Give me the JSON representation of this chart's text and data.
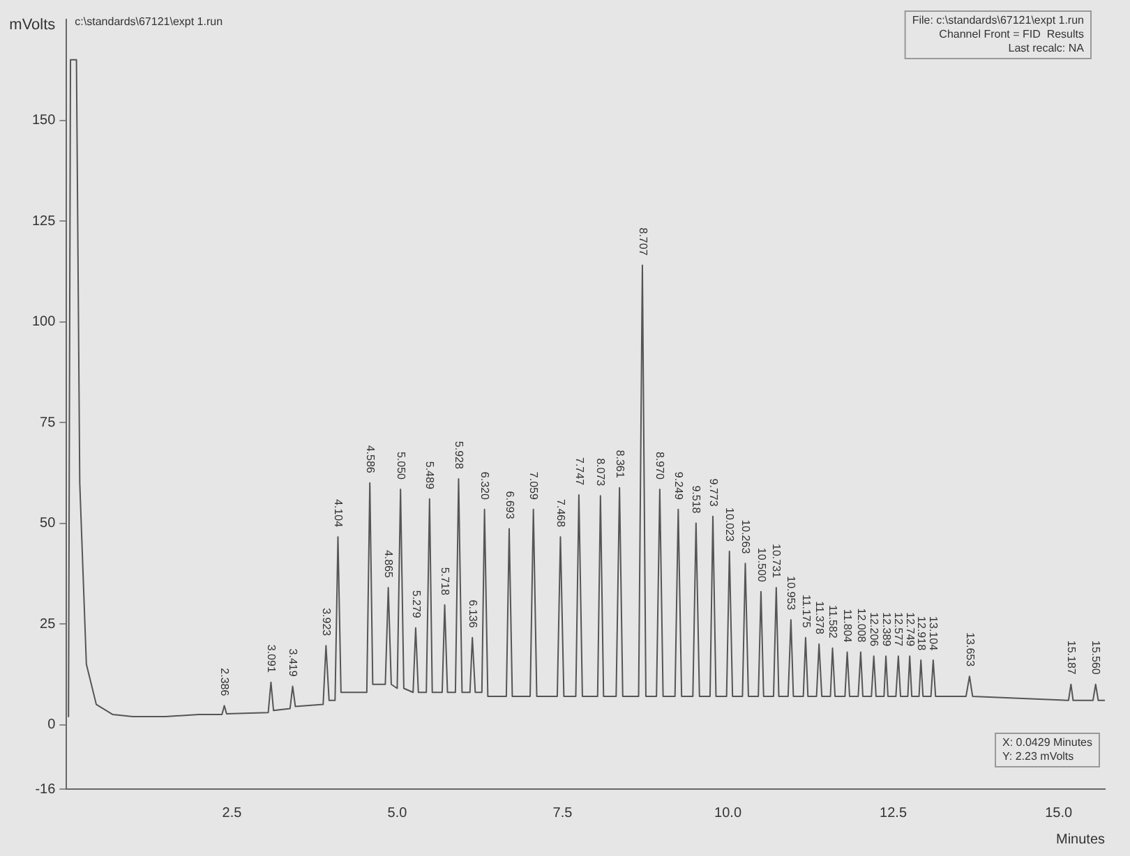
{
  "chart_data": {
    "type": "line",
    "xlabel": "Minutes",
    "ylabel": "mVolts",
    "annotations": [
      "c:\\standards\\67121\\expt 1.run",
      "File: c:\\standards\\67121\\expt 1.run",
      "Channel Front = FID  Results",
      "Last recalc: NA",
      "X: 0.0429 Minutes",
      "Y: 2.23 mVolts",
      {
        "text": "2.386",
        "x": 2.386,
        "y": 4.7
      },
      {
        "text": "3.091",
        "x": 3.091,
        "y": 10.5
      },
      {
        "text": "3.419",
        "x": 3.419,
        "y": 9.5
      },
      {
        "text": "3.923",
        "x": 3.923,
        "y": 19.6
      },
      {
        "text": "4.104",
        "x": 4.104,
        "y": 46.6
      },
      {
        "text": "4.586",
        "x": 4.586,
        "y": 60
      },
      {
        "text": "4.865",
        "x": 4.865,
        "y": 34
      },
      {
        "text": "5.050",
        "x": 5.05,
        "y": 58.4
      },
      {
        "text": "5.279",
        "x": 5.279,
        "y": 24
      },
      {
        "text": "5.489",
        "x": 5.489,
        "y": 56
      },
      {
        "text": "5.718",
        "x": 5.718,
        "y": 29.7
      },
      {
        "text": "5.928",
        "x": 5.928,
        "y": 61
      },
      {
        "text": "6.136",
        "x": 6.136,
        "y": 21.6
      },
      {
        "text": "6.320",
        "x": 6.32,
        "y": 53.4
      },
      {
        "text": "6.693",
        "x": 6.693,
        "y": 48.6
      },
      {
        "text": "7.059",
        "x": 7.059,
        "y": 53.4
      },
      {
        "text": "7.468",
        "x": 7.468,
        "y": 46.6
      },
      {
        "text": "7.747",
        "x": 7.747,
        "y": 57
      },
      {
        "text": "8.073",
        "x": 8.073,
        "y": 56.8
      },
      {
        "text": "8.361",
        "x": 8.361,
        "y": 58.8
      },
      {
        "text": "8.707",
        "x": 8.707,
        "y": 114
      },
      {
        "text": "8.970",
        "x": 8.97,
        "y": 58.4
      },
      {
        "text": "9.249",
        "x": 9.249,
        "y": 53.4
      },
      {
        "text": "9.518",
        "x": 9.518,
        "y": 50
      },
      {
        "text": "9.773",
        "x": 9.773,
        "y": 51.7
      },
      {
        "text": "10.023",
        "x": 10.023,
        "y": 43
      },
      {
        "text": "10.263",
        "x": 10.263,
        "y": 40
      },
      {
        "text": "10.500",
        "x": 10.5,
        "y": 33
      },
      {
        "text": "10.731",
        "x": 10.731,
        "y": 34
      },
      {
        "text": "10.953",
        "x": 10.953,
        "y": 26
      },
      {
        "text": "11.175",
        "x": 11.175,
        "y": 21.6
      },
      {
        "text": "11.378",
        "x": 11.378,
        "y": 20
      },
      {
        "text": "11.582",
        "x": 11.582,
        "y": 19
      },
      {
        "text": "11.804",
        "x": 11.804,
        "y": 18
      },
      {
        "text": "12.008",
        "x": 12.008,
        "y": 18
      },
      {
        "text": "12.206",
        "x": 12.206,
        "y": 17
      },
      {
        "text": "12.389",
        "x": 12.389,
        "y": 17
      },
      {
        "text": "12.577",
        "x": 12.577,
        "y": 17
      },
      {
        "text": "12.749",
        "x": 12.749,
        "y": 17
      },
      {
        "text": "12.918",
        "x": 12.918,
        "y": 16
      },
      {
        "text": "13.104",
        "x": 13.104,
        "y": 16
      },
      {
        "text": "13.653",
        "x": 13.653,
        "y": 12
      },
      {
        "text": "15.187",
        "x": 15.187,
        "y": 10
      },
      {
        "text": "15.560",
        "x": 15.56,
        "y": 10
      }
    ],
    "x": [
      0.03,
      0.06,
      0.15,
      0.2,
      0.3,
      0.45,
      0.7,
      1,
      1.5,
      2,
      2.35,
      2.386,
      2.42,
      3.05,
      3.091,
      3.13,
      3.38,
      3.419,
      3.46,
      3.88,
      3.923,
      3.97,
      4.06,
      4.104,
      4.15,
      4.54,
      4.586,
      4.63,
      4.82,
      4.865,
      4.91,
      5,
      5.05,
      5.1,
      5.24,
      5.279,
      5.32,
      5.44,
      5.489,
      5.53,
      5.68,
      5.718,
      5.76,
      5.88,
      5.928,
      5.98,
      6.1,
      6.136,
      6.18,
      6.28,
      6.32,
      6.37,
      6.65,
      6.693,
      6.74,
      7.01,
      7.059,
      7.11,
      7.42,
      7.468,
      7.52,
      7.7,
      7.747,
      7.8,
      8.03,
      8.073,
      8.12,
      8.31,
      8.361,
      8.41,
      8.65,
      8.707,
      8.76,
      8.92,
      8.97,
      9.02,
      9.2,
      9.249,
      9.3,
      9.47,
      9.518,
      9.57,
      9.73,
      9.773,
      9.82,
      9.98,
      10.023,
      10.07,
      10.22,
      10.263,
      10.31,
      10.46,
      10.5,
      10.54,
      10.69,
      10.731,
      10.77,
      10.91,
      10.953,
      10.99,
      11.14,
      11.175,
      11.21,
      11.34,
      11.378,
      11.42,
      11.55,
      11.582,
      11.62,
      11.77,
      11.804,
      11.84,
      11.97,
      12.008,
      12.04,
      12.17,
      12.206,
      12.24,
      12.36,
      12.389,
      12.42,
      12.54,
      12.577,
      12.61,
      12.72,
      12.749,
      12.78,
      12.89,
      12.918,
      12.95,
      13.07,
      13.104,
      13.14,
      13.6,
      13.653,
      13.7,
      15.15,
      15.187,
      15.22,
      15.52,
      15.56,
      15.6,
      15.7
    ],
    "series": [
      {
        "color": "#555555",
        "values": [
          2,
          165,
          165,
          60,
          15,
          5,
          2.5,
          2,
          2,
          2.5,
          2.5,
          4.7,
          2.7,
          3,
          10.5,
          3.5,
          4,
          9.5,
          4.5,
          5,
          19.6,
          6,
          6,
          46.6,
          8,
          8,
          60,
          10,
          10,
          34,
          10,
          9,
          58.4,
          9,
          8,
          24,
          8,
          8,
          56,
          8,
          8,
          29.7,
          8,
          8,
          61,
          8,
          8,
          21.6,
          8,
          8,
          53.4,
          7,
          7,
          48.6,
          7,
          7,
          53.4,
          7,
          7,
          46.6,
          7,
          7,
          57,
          7,
          7,
          56.8,
          7,
          7,
          58.8,
          7,
          7,
          114,
          7,
          7,
          58.4,
          7,
          7,
          53.4,
          7,
          7,
          50,
          7,
          7,
          51.7,
          7,
          7,
          43,
          7,
          7,
          40,
          7,
          7,
          33,
          7,
          7,
          34,
          7,
          7,
          26,
          7,
          7,
          21.6,
          7,
          7,
          20,
          7,
          7,
          19,
          7,
          7,
          18,
          7,
          7,
          18,
          7,
          7,
          17,
          7,
          7,
          17,
          7,
          7,
          17,
          7,
          7,
          17,
          7,
          7,
          16,
          7,
          7,
          16,
          7,
          7,
          12,
          7,
          6,
          10,
          6,
          6,
          10,
          6,
          6
        ]
      }
    ],
    "xlim": [
      0,
      15.7
    ],
    "xticks": [
      2.5,
      {
        "value": 5,
        "label": "5.0"
      },
      7.5,
      {
        "value": 10,
        "label": "10.0"
      },
      12.5,
      {
        "value": 15,
        "label": "15.0"
      }
    ],
    "ylim": [
      -16,
      175
    ],
    "yticks": [
      -16,
      0,
      25,
      50,
      75,
      100,
      125,
      150
    ],
    "grid": false,
    "legend": false,
    "marker": "none",
    "line_style": "solid"
  }
}
